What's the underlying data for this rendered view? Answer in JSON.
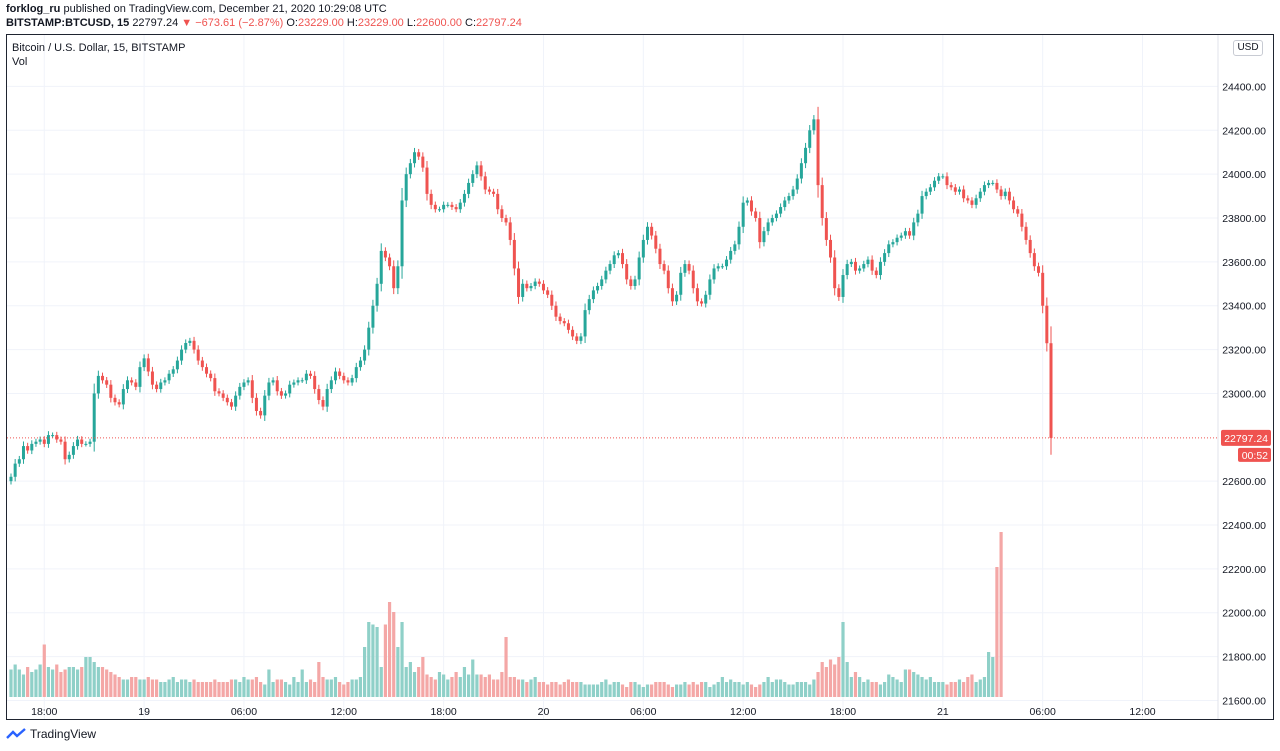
{
  "header": {
    "author": "forklog_ru",
    "published_text": "published on TradingView.com, December 21, 2020 10:29:08 UTC"
  },
  "quote": {
    "symbol": "BITSTAMP:BTCUSD, 15",
    "last": "22797.24",
    "change": "▼ −673.61 (−2.87%)",
    "open_label": "O:",
    "open": "23229.00",
    "high_label": "H:",
    "high": "23229.00",
    "low_label": "L:",
    "low": "22600.00",
    "close_label": "C:",
    "close": "22797.24"
  },
  "legend": {
    "title": "Bitcoin / U.S. Dollar, 15, BITSTAMP",
    "volume": "Vol"
  },
  "currency_button": "USD",
  "price_badge": "22797.24",
  "countdown_badge": "00:52",
  "footer": {
    "brand": "TradingView"
  },
  "colors": {
    "up": "#26a69a",
    "down": "#ef5350",
    "up_vol": "#8fd0c8",
    "down_vol": "#f4a7a6",
    "grid": "#f0f3fa"
  },
  "chart_data": {
    "type": "candlestick",
    "y_axis_ticks": [
      "24400.00",
      "24200.00",
      "24000.00",
      "23800.00",
      "23600.00",
      "23400.00",
      "23200.00",
      "23000.00",
      "22600.00",
      "22400.00",
      "22200.00",
      "22000.00",
      "21800.00",
      "21600.00"
    ],
    "ylim": [
      21520,
      24630
    ],
    "x_axis_labels": [
      "18:00",
      "19",
      "06:00",
      "12:00",
      "18:00",
      "20",
      "06:00",
      "12:00",
      "18:00",
      "21",
      "06:00",
      "12:00"
    ],
    "x_axis_slots": [
      8,
      32,
      56,
      80,
      104,
      128,
      152,
      176,
      200,
      224,
      248,
      272
    ],
    "current_price": 22797.24,
    "closes": [
      22620,
      22680,
      22700,
      22760,
      22740,
      22770,
      22780,
      22790,
      22770,
      22810,
      22810,
      22790,
      22780,
      22700,
      22720,
      22760,
      22790,
      22770,
      22770,
      22780,
      23000,
      23080,
      23060,
      23040,
      22980,
      22960,
      22950,
      23020,
      23060,
      23050,
      23030,
      23120,
      23160,
      23100,
      23040,
      23020,
      23050,
      23060,
      23090,
      23110,
      23150,
      23200,
      23230,
      23240,
      23200,
      23150,
      23120,
      23090,
      23070,
      23010,
      23000,
      22980,
      22960,
      22940,
      22990,
      23030,
      23050,
      23060,
      22980,
      22920,
      22900,
      22990,
      23050,
      23060,
      23010,
      22990,
      23000,
      23040,
      23050,
      23060,
      23060,
      23090,
      23080,
      23020,
      22970,
      22940,
      23020,
      23060,
      23100,
      23080,
      23060,
      23050,
      23070,
      23120,
      23150,
      23200,
      23300,
      23400,
      23500,
      23650,
      23620,
      23580,
      23480,
      23580,
      23880,
      24000,
      24050,
      24100,
      24080,
      24030,
      23910,
      23860,
      23840,
      23840,
      23860,
      23860,
      23850,
      23840,
      23870,
      23910,
      23960,
      24000,
      24040,
      23990,
      23930,
      23920,
      23910,
      23840,
      23800,
      23780,
      23700,
      23570,
      23440,
      23500,
      23480,
      23490,
      23510,
      23500,
      23470,
      23450,
      23400,
      23350,
      23330,
      23320,
      23290,
      23260,
      23240,
      23260,
      23380,
      23430,
      23470,
      23490,
      23520,
      23560,
      23590,
      23630,
      23640,
      23590,
      23520,
      23490,
      23520,
      23620,
      23700,
      23760,
      23720,
      23660,
      23590,
      23560,
      23480,
      23420,
      23450,
      23550,
      23590,
      23560,
      23480,
      23420,
      23410,
      23450,
      23520,
      23570,
      23580,
      23580,
      23610,
      23650,
      23680,
      23760,
      23870,
      23880,
      23830,
      23800,
      23690,
      23740,
      23780,
      23800,
      23820,
      23850,
      23880,
      23900,
      23930,
      23980,
      24050,
      24120,
      24200,
      24250,
      23950,
      23800,
      23700,
      23620,
      23480,
      23440,
      23540,
      23590,
      23600,
      23560,
      23570,
      23590,
      23610,
      23560,
      23540,
      23600,
      23640,
      23680,
      23690,
      23710,
      23720,
      23740,
      23720,
      23780,
      23820,
      23900,
      23920,
      23940,
      23970,
      23990,
      23990,
      23950,
      23940,
      23920,
      23930,
      23890,
      23880,
      23860,
      23890,
      23920,
      23950,
      23960,
      23960,
      23930,
      23900,
      23920,
      23880,
      23840,
      23820,
      23760,
      23700,
      23640,
      23580,
      23550,
      23400,
      23229,
      22797.24
    ],
    "volumes": [
      55,
      65,
      55,
      45,
      60,
      50,
      55,
      65,
      105,
      60,
      55,
      65,
      50,
      55,
      60,
      60,
      55,
      60,
      80,
      80,
      70,
      60,
      60,
      55,
      50,
      45,
      40,
      35,
      35,
      40,
      40,
      35,
      35,
      40,
      35,
      35,
      30,
      30,
      35,
      40,
      30,
      35,
      35,
      30,
      35,
      30,
      30,
      30,
      30,
      35,
      30,
      30,
      30,
      35,
      35,
      30,
      40,
      35,
      35,
      40,
      30,
      25,
      55,
      30,
      35,
      35,
      30,
      25,
      40,
      30,
      55,
      30,
      35,
      30,
      70,
      40,
      35,
      35,
      40,
      30,
      25,
      30,
      35,
      35,
      40,
      100,
      150,
      145,
      140,
      60,
      145,
      190,
      170,
      100,
      150,
      60,
      70,
      50,
      60,
      80,
      45,
      40,
      35,
      50,
      45,
      35,
      40,
      50,
      40,
      60,
      45,
      75,
      45,
      45,
      40,
      45,
      35,
      35,
      50,
      120,
      40,
      40,
      35,
      35,
      30,
      35,
      40,
      30,
      30,
      25,
      30,
      30,
      25,
      30,
      35,
      30,
      30,
      30,
      25,
      25,
      25,
      25,
      30,
      35,
      25,
      30,
      30,
      25,
      20,
      30,
      30,
      25,
      20,
      25,
      25,
      30,
      30,
      30,
      25,
      20,
      25,
      25,
      30,
      25,
      30,
      25,
      30,
      30,
      20,
      25,
      30,
      40,
      30,
      35,
      30,
      30,
      25,
      30,
      25,
      20,
      25,
      30,
      40,
      30,
      35,
      35,
      30,
      25,
      25,
      30,
      30,
      30,
      25,
      35,
      50,
      70,
      60,
      75,
      65,
      80,
      150,
      70,
      40,
      50,
      40,
      30,
      35,
      30,
      30,
      25,
      30,
      45,
      40,
      35,
      30,
      55,
      55,
      50,
      45,
      40,
      35,
      40,
      30,
      30,
      30,
      25,
      30,
      30,
      35,
      30,
      40,
      45,
      30,
      35,
      40,
      90,
      80,
      260,
      330
    ]
  }
}
